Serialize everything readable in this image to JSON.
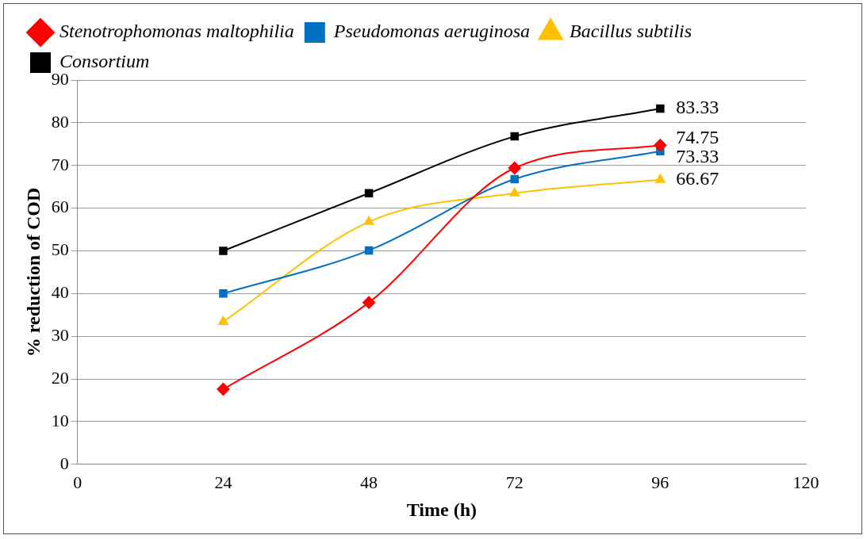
{
  "chart_data": {
    "type": "line",
    "xlabel": "Time (h)",
    "ylabel": "% reduction of COD",
    "x": [
      24,
      48,
      72,
      96
    ],
    "xlim": [
      0,
      120
    ],
    "xticks": [
      0,
      24,
      48,
      72,
      96,
      120
    ],
    "ylim": [
      0,
      90
    ],
    "yticks": [
      0,
      10,
      20,
      30,
      40,
      50,
      60,
      70,
      80,
      90
    ],
    "grid": "y",
    "legend": "top",
    "series": [
      {
        "name": "Stenotrophomonas maltophilia",
        "color": "#ff0000",
        "marker": "diamond",
        "values": [
          17.6,
          37.9,
          69.4,
          74.75
        ],
        "value_labels": [
          null,
          null,
          null,
          "74.75"
        ]
      },
      {
        "name": "Pseudomonas aeruginosa",
        "color": "#0070c0",
        "marker": "square",
        "values": [
          40,
          50.1,
          66.8,
          73.33
        ],
        "value_labels": [
          null,
          null,
          null,
          "73.33"
        ]
      },
      {
        "name": "Bacillus subtilis",
        "color": "#ffc000",
        "marker": "triangle",
        "values": [
          33.4,
          56.8,
          63.5,
          66.67
        ],
        "value_labels": [
          null,
          null,
          null,
          "66.67"
        ]
      },
      {
        "name": "Consortium",
        "color": "#000000",
        "marker": "square",
        "values": [
          50,
          63.5,
          76.8,
          83.33
        ],
        "value_labels": [
          null,
          null,
          null,
          "83.33"
        ]
      }
    ]
  }
}
